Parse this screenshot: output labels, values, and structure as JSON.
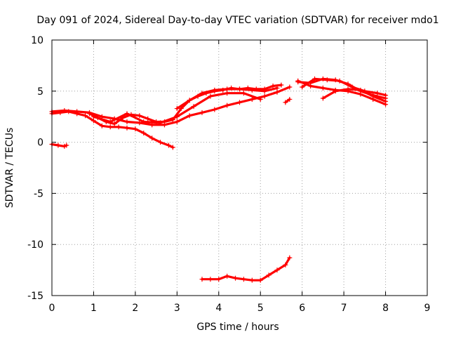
{
  "chart_data": {
    "type": "scatter",
    "title": "Day 091 of 2024, Sidereal Day-to-day VTEC variation (SDTVAR) for receiver mdo1",
    "xlabel": "GPS time / hours",
    "ylabel": "SDTVAR / TECUs",
    "xlim": [
      0,
      9
    ],
    "ylim": [
      -15,
      10
    ],
    "xticks": [
      "0",
      "1",
      "2",
      "3",
      "4",
      "5",
      "6",
      "7",
      "8",
      "9"
    ],
    "yticks": [
      "10",
      "5",
      "0",
      "-5",
      "-10",
      "-15"
    ],
    "xtick_values": [
      0,
      1,
      2,
      3,
      4,
      5,
      6,
      7,
      8,
      9
    ],
    "ytick_values": [
      10,
      5,
      0,
      -5,
      -10,
      -15
    ],
    "grid": true,
    "marker": "plus",
    "color": "#ff0000",
    "series": [
      {
        "name": "s1",
        "x": [
          0.0,
          0.2,
          0.4,
          0.6,
          0.8,
          1.0,
          1.2,
          1.4,
          1.6,
          1.8,
          2.0,
          2.2,
          2.4,
          2.6,
          2.8,
          2.9
        ],
        "y": [
          2.8,
          2.9,
          3.0,
          2.8,
          2.6,
          2.1,
          1.6,
          1.5,
          1.5,
          1.4,
          1.3,
          0.9,
          0.4,
          0.0,
          -0.3,
          -0.5
        ]
      },
      {
        "name": "s2",
        "x": [
          0.0,
          0.3,
          0.6,
          0.9,
          1.2,
          1.5,
          1.8,
          2.1,
          2.4,
          2.7,
          3.0,
          3.3,
          3.6,
          3.9,
          4.2,
          4.5,
          4.8,
          5.1,
          5.4,
          5.7
        ],
        "y": [
          3.0,
          3.1,
          3.0,
          2.9,
          2.5,
          2.3,
          2.0,
          1.9,
          1.7,
          1.7,
          2.0,
          2.6,
          2.9,
          3.2,
          3.6,
          3.9,
          4.2,
          4.5,
          4.9,
          5.4
        ]
      },
      {
        "name": "s3",
        "x": [
          0.9,
          1.1,
          1.3,
          1.5,
          1.7,
          1.9,
          2.1,
          2.3,
          2.5,
          2.7,
          2.9,
          3.1,
          3.3,
          3.5,
          3.7,
          3.9,
          4.1,
          4.3,
          4.5,
          4.7,
          4.9,
          5.1,
          5.3,
          5.5
        ],
        "y": [
          2.8,
          2.4,
          2.0,
          1.8,
          2.4,
          2.7,
          2.6,
          2.3,
          2.0,
          2.0,
          2.2,
          3.3,
          4.1,
          4.5,
          4.8,
          5.0,
          5.1,
          5.3,
          5.2,
          5.3,
          5.2,
          5.2,
          5.5,
          5.6
        ]
      },
      {
        "name": "s4",
        "x": [
          1.0,
          1.4,
          1.8,
          2.2,
          2.6,
          3.0,
          3.4,
          3.8,
          4.2,
          4.6,
          5.0
        ],
        "y": [
          2.5,
          2.0,
          2.8,
          2.0,
          1.9,
          2.5,
          3.5,
          4.5,
          4.8,
          4.8,
          4.2
        ]
      },
      {
        "name": "s5",
        "x": [
          3.0,
          3.3,
          3.6,
          3.9,
          4.2,
          4.5,
          4.8,
          5.1,
          5.4
        ],
        "y": [
          3.3,
          4.1,
          4.8,
          5.1,
          5.2,
          5.2,
          5.1,
          5.0,
          5.3
        ]
      },
      {
        "name": "s6",
        "x": [
          0.0,
          0.15,
          0.3,
          0.35
        ],
        "y": [
          -0.2,
          -0.3,
          -0.4,
          -0.3
        ]
      },
      {
        "name": "s7",
        "x": [
          5.6,
          5.7
        ],
        "y": [
          3.9,
          4.2
        ]
      },
      {
        "name": "s8",
        "x": [
          5.9,
          6.2,
          6.5,
          6.8,
          7.1,
          7.4,
          7.7,
          8.0
        ],
        "y": [
          5.9,
          5.8,
          6.2,
          6.1,
          5.7,
          5.0,
          4.6,
          4.3
        ]
      },
      {
        "name": "s9",
        "x": [
          5.9,
          6.2,
          6.5,
          6.8,
          7.1,
          7.4,
          7.7,
          8.0
        ],
        "y": [
          6.0,
          5.5,
          5.3,
          5.1,
          5.0,
          4.7,
          4.2,
          3.7
        ]
      },
      {
        "name": "s10",
        "x": [
          6.0,
          6.3,
          6.6,
          6.9,
          7.2,
          7.5,
          7.8,
          8.0
        ],
        "y": [
          5.4,
          6.2,
          6.1,
          6.0,
          5.4,
          5.0,
          4.8,
          4.6
        ]
      },
      {
        "name": "s11",
        "x": [
          6.5,
          6.8,
          7.1,
          7.4,
          7.7,
          8.0
        ],
        "y": [
          4.3,
          5.0,
          5.2,
          5.1,
          4.5,
          4.0
        ]
      },
      {
        "name": "s12",
        "x": [
          3.6,
          3.8,
          4.0,
          4.2,
          4.4,
          4.6,
          4.8,
          5.0,
          5.2,
          5.4,
          5.6,
          5.7
        ],
        "y": [
          -13.4,
          -13.4,
          -13.4,
          -13.1,
          -13.3,
          -13.4,
          -13.5,
          -13.5,
          -13.0,
          -12.5,
          -12.0,
          -11.3
        ]
      }
    ]
  }
}
